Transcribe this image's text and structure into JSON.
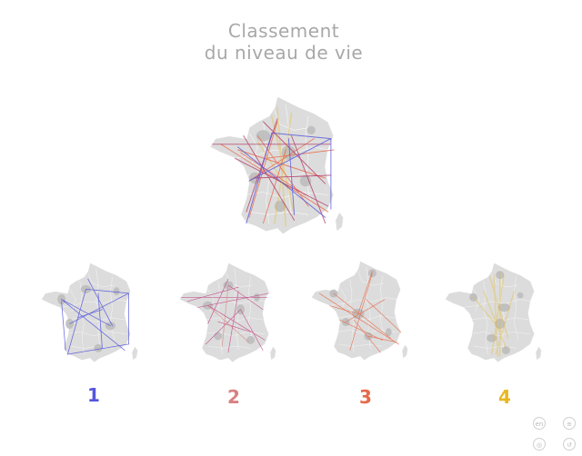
{
  "title": {
    "line1": "Classement",
    "line2": "du niveau de vie"
  },
  "colors": {
    "background": "#ffffff",
    "land": "#dcdcdc",
    "highlight": "#bdbdbd",
    "q1": "#5555dd",
    "q2": "#d98080",
    "q3": "#e66a4a",
    "q4": "#e8b820",
    "extra_lines": [
      "#b03060",
      "#e08040",
      "#c04080"
    ]
  },
  "maps": {
    "combined": {
      "label": "",
      "quartile": "all"
    },
    "q1": {
      "label": "1",
      "color": "#5555dd"
    },
    "q2": {
      "label": "2",
      "color": "#d98080"
    },
    "q3": {
      "label": "3",
      "color": "#e66a4a"
    },
    "q4": {
      "label": "4",
      "color": "#e8b820"
    }
  },
  "controls": [
    {
      "name": "language-button",
      "glyph": "en"
    },
    {
      "name": "menu-button",
      "glyph": "≡"
    },
    {
      "name": "info-button",
      "glyph": "◎"
    },
    {
      "name": "share-button",
      "glyph": "↺"
    }
  ]
}
